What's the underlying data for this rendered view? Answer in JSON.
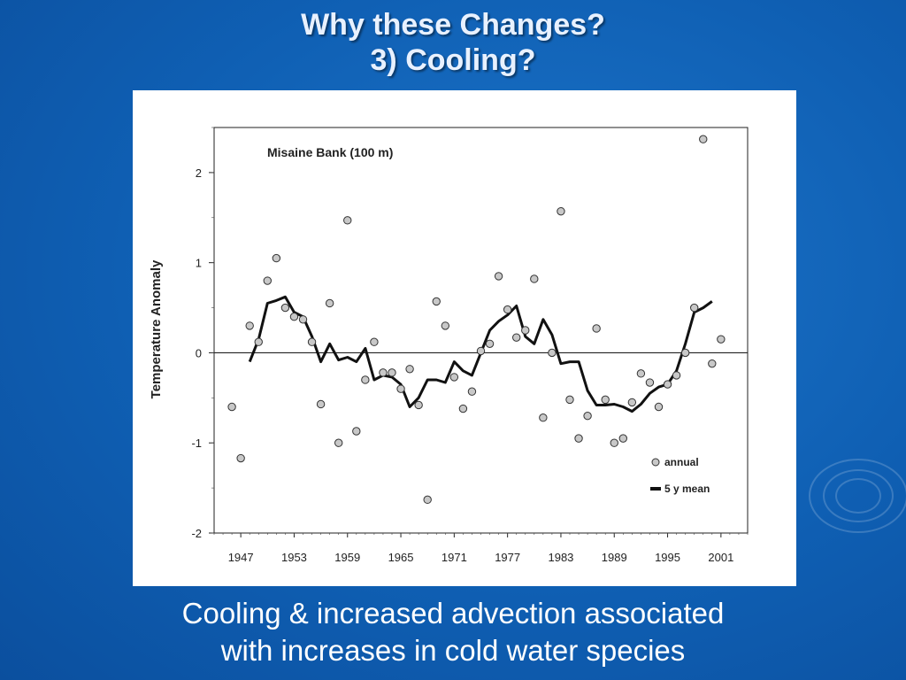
{
  "slide": {
    "title_line1": "Why these Changes?",
    "title_line2": "3) Cooling?",
    "caption_line1": "Cooling & increased advection associated",
    "caption_line2": "with increases in cold water species"
  },
  "colors": {
    "background": "#0f5fb3",
    "title": "#e8f1ff",
    "caption": "#ffffff",
    "panel": "#ffffff",
    "marker_fill": "#c8c8c8",
    "line": "#111111"
  },
  "chart_data": {
    "type": "scatter",
    "title": "Misaine Bank (100 m)",
    "xlabel": "",
    "ylabel": "Temperature Anomaly",
    "xlim": [
      1944,
      2004
    ],
    "ylim": [
      -2,
      2.5
    ],
    "xticks": [
      1947,
      1953,
      1959,
      1965,
      1971,
      1977,
      1983,
      1989,
      1995,
      2001
    ],
    "yticks": [
      2,
      1,
      0,
      -1,
      -2
    ],
    "xtick_labels": [
      "1947",
      "1953",
      "1959",
      "1965",
      "1971",
      "1977",
      "1983",
      "1989",
      "1995",
      "2001"
    ],
    "ytick_labels": [
      "2",
      "1",
      "0",
      "-1",
      "-2"
    ],
    "reference_line_y": 0,
    "legend": {
      "position": "bottom-right",
      "entries": [
        "annual",
        "5 y mean"
      ]
    },
    "series": [
      {
        "name": "annual",
        "marker": "circle",
        "points": [
          [
            1946,
            -0.6
          ],
          [
            1947,
            -1.17
          ],
          [
            1948,
            0.3
          ],
          [
            1949,
            0.12
          ],
          [
            1950,
            0.8
          ],
          [
            1951,
            1.05
          ],
          [
            1952,
            0.5
          ],
          [
            1953,
            0.4
          ],
          [
            1954,
            0.37
          ],
          [
            1955,
            0.12
          ],
          [
            1956,
            -0.57
          ],
          [
            1957,
            0.55
          ],
          [
            1958,
            -1.0
          ],
          [
            1959,
            1.47
          ],
          [
            1960,
            -0.87
          ],
          [
            1961,
            -0.3
          ],
          [
            1962,
            0.12
          ],
          [
            1963,
            -0.22
          ],
          [
            1964,
            -0.22
          ],
          [
            1965,
            -0.4
          ],
          [
            1966,
            -0.18
          ],
          [
            1967,
            -0.58
          ],
          [
            1968,
            -1.63
          ],
          [
            1969,
            0.57
          ],
          [
            1970,
            0.3
          ],
          [
            1971,
            -0.27
          ],
          [
            1972,
            -0.62
          ],
          [
            1973,
            -0.43
          ],
          [
            1974,
            0.02
          ],
          [
            1975,
            0.1
          ],
          [
            1976,
            0.85
          ],
          [
            1977,
            0.48
          ],
          [
            1978,
            0.17
          ],
          [
            1979,
            0.25
          ],
          [
            1980,
            0.82
          ],
          [
            1981,
            -0.72
          ],
          [
            1982,
            0.0
          ],
          [
            1983,
            1.57
          ],
          [
            1984,
            -0.52
          ],
          [
            1985,
            -0.95
          ],
          [
            1986,
            -0.7
          ],
          [
            1987,
            0.27
          ],
          [
            1988,
            -0.52
          ],
          [
            1989,
            -1.0
          ],
          [
            1990,
            -0.95
          ],
          [
            1991,
            -0.55
          ],
          [
            1992,
            -0.23
          ],
          [
            1993,
            -0.33
          ],
          [
            1994,
            -0.6
          ],
          [
            1995,
            -0.35
          ],
          [
            1996,
            -0.25
          ],
          [
            1997,
            0.0
          ],
          [
            1998,
            0.5
          ],
          [
            1999,
            2.37
          ],
          [
            2000,
            -0.12
          ],
          [
            2001,
            0.15
          ]
        ]
      },
      {
        "name": "5 y mean",
        "marker": "line",
        "points": [
          [
            1948,
            -0.1
          ],
          [
            1949,
            0.15
          ],
          [
            1950,
            0.55
          ],
          [
            1951,
            0.58
          ],
          [
            1952,
            0.62
          ],
          [
            1953,
            0.45
          ],
          [
            1954,
            0.4
          ],
          [
            1955,
            0.18
          ],
          [
            1956,
            -0.1
          ],
          [
            1957,
            0.1
          ],
          [
            1958,
            -0.08
          ],
          [
            1959,
            -0.05
          ],
          [
            1960,
            -0.1
          ],
          [
            1961,
            0.05
          ],
          [
            1962,
            -0.3
          ],
          [
            1963,
            -0.25
          ],
          [
            1964,
            -0.27
          ],
          [
            1965,
            -0.35
          ],
          [
            1966,
            -0.6
          ],
          [
            1967,
            -0.5
          ],
          [
            1968,
            -0.3
          ],
          [
            1969,
            -0.3
          ],
          [
            1970,
            -0.33
          ],
          [
            1971,
            -0.1
          ],
          [
            1972,
            -0.2
          ],
          [
            1973,
            -0.25
          ],
          [
            1974,
            0.0
          ],
          [
            1975,
            0.25
          ],
          [
            1976,
            0.35
          ],
          [
            1977,
            0.42
          ],
          [
            1978,
            0.52
          ],
          [
            1979,
            0.18
          ],
          [
            1980,
            0.1
          ],
          [
            1981,
            0.37
          ],
          [
            1982,
            0.2
          ],
          [
            1983,
            -0.12
          ],
          [
            1984,
            -0.1
          ],
          [
            1985,
            -0.1
          ],
          [
            1986,
            -0.42
          ],
          [
            1987,
            -0.58
          ],
          [
            1988,
            -0.58
          ],
          [
            1989,
            -0.57
          ],
          [
            1990,
            -0.6
          ],
          [
            1991,
            -0.65
          ],
          [
            1992,
            -0.57
          ],
          [
            1993,
            -0.45
          ],
          [
            1994,
            -0.38
          ],
          [
            1995,
            -0.35
          ],
          [
            1996,
            -0.2
          ],
          [
            1997,
            0.1
          ],
          [
            1998,
            0.45
          ],
          [
            1999,
            0.5
          ],
          [
            2000,
            0.57
          ]
        ]
      }
    ]
  }
}
